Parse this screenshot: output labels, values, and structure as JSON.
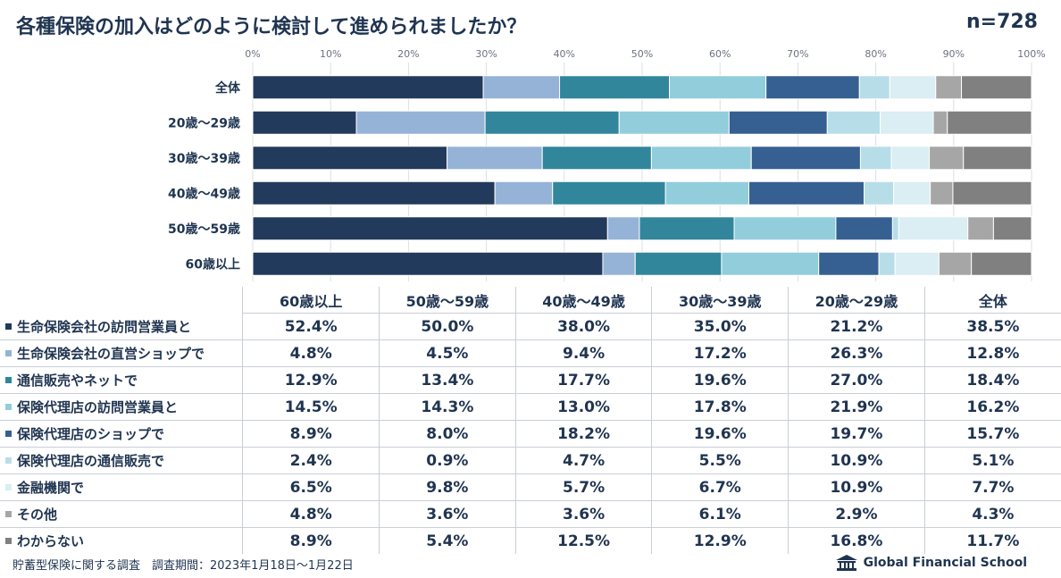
{
  "header": {
    "title": "各種保険の加入はどのように検討して進められましたか？",
    "sample": "n=728"
  },
  "chart_data": {
    "type": "bar",
    "orientation": "horizontal-stacked-100",
    "x_ticks": [
      "0%",
      "10%",
      "20%",
      "30%",
      "40%",
      "50%",
      "60%",
      "70%",
      "80%",
      "90%",
      "100%"
    ],
    "xlim": [
      0,
      100
    ],
    "categories": [
      "全体",
      "20歳～29歳",
      "30歳～39歳",
      "40歳～49歳",
      "50歳～59歳",
      "60歳以上"
    ],
    "series": [
      {
        "name": "生命保険会社の訪問営業員と",
        "color": "#223a5c",
        "values": [
          29.6,
          13.3,
          25.1,
          31.1,
          45.7,
          45.4
        ]
      },
      {
        "name": "生命保険会社の直営ショップで",
        "color": "#95b3d7",
        "values": [
          9.8,
          16.5,
          12.3,
          7.4,
          4.1,
          4.2
        ]
      },
      {
        "name": "通信販売やネットで",
        "color": "#31869b",
        "values": [
          14.1,
          17.2,
          14.1,
          14.5,
          12.2,
          11.2
        ]
      },
      {
        "name": "保険代理店の訪問営業員と",
        "color": "#92cddc",
        "values": [
          12.4,
          14.1,
          12.9,
          10.7,
          13.1,
          12.6
        ]
      },
      {
        "name": "保険代理店のショップで",
        "color": "#366092",
        "values": [
          12.0,
          12.6,
          14.1,
          14.8,
          7.3,
          7.8
        ]
      },
      {
        "name": "保険代理店の通信販売で",
        "color": "#b7dee8",
        "values": [
          3.9,
          6.8,
          4.0,
          3.8,
          0.8,
          2.1
        ]
      },
      {
        "name": "金融機関で",
        "color": "#daeef3",
        "values": [
          5.9,
          6.8,
          4.9,
          4.7,
          8.9,
          5.7
        ]
      },
      {
        "name": "その他",
        "color": "#a6a6a6",
        "values": [
          3.3,
          1.8,
          4.4,
          2.9,
          3.3,
          4.2
        ]
      },
      {
        "name": "わからない",
        "color": "#808080",
        "values": [
          9.0,
          10.8,
          8.8,
          10.1,
          4.9,
          7.8
        ]
      }
    ]
  },
  "table": {
    "columns": [
      "60歳以上",
      "50歳～59歳",
      "40歳～49歳",
      "30歳～39歳",
      "20歳～29歳",
      "全体"
    ],
    "rows": [
      {
        "label": "生命保険会社の訪問営業員と",
        "color": "#223a5c",
        "values": [
          "52.4%",
          "50.0%",
          "38.0%",
          "35.0%",
          "21.2%",
          "38.5%"
        ]
      },
      {
        "label": "生命保険会社の直営ショップで",
        "color": "#95b3d7",
        "values": [
          "4.8%",
          "4.5%",
          "9.4%",
          "17.2%",
          "26.3%",
          "12.8%"
        ]
      },
      {
        "label": "通信販売やネットで",
        "color": "#31869b",
        "values": [
          "12.9%",
          "13.4%",
          "17.7%",
          "19.6%",
          "27.0%",
          "18.4%"
        ]
      },
      {
        "label": "保険代理店の訪問営業員と",
        "color": "#92cddc",
        "values": [
          "14.5%",
          "14.3%",
          "13.0%",
          "17.8%",
          "21.9%",
          "16.2%"
        ]
      },
      {
        "label": "保険代理店のショップで",
        "color": "#366092",
        "values": [
          "8.9%",
          "8.0%",
          "18.2%",
          "19.6%",
          "19.7%",
          "15.7%"
        ]
      },
      {
        "label": "保険代理店の通信販売で",
        "color": "#b7dee8",
        "values": [
          "2.4%",
          "0.9%",
          "4.7%",
          "5.5%",
          "10.9%",
          "5.1%"
        ]
      },
      {
        "label": "金融機関で",
        "color": "#daeef3",
        "values": [
          "6.5%",
          "9.8%",
          "5.7%",
          "6.7%",
          "10.9%",
          "7.7%"
        ]
      },
      {
        "label": "その他",
        "color": "#a6a6a6",
        "values": [
          "4.8%",
          "3.6%",
          "3.6%",
          "6.1%",
          "2.9%",
          "4.3%"
        ]
      },
      {
        "label": "わからない",
        "color": "#808080",
        "values": [
          "8.9%",
          "5.4%",
          "12.5%",
          "12.9%",
          "16.8%",
          "11.7%"
        ]
      }
    ]
  },
  "footer": {
    "note": "貯蓄型保険に関する調査　調査期間：2023年1月18日～1月22日",
    "brand": "Global Financial School",
    "brand_logo_icon": "gfs-logo-icon"
  }
}
